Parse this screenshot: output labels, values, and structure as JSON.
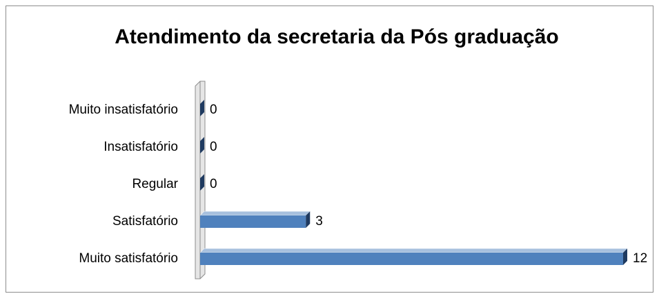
{
  "chart_data": {
    "type": "bar",
    "orientation": "horizontal",
    "title": "Atendimento da secretaria da Pós graduação",
    "categories": [
      "Muito insatisfatório",
      "Insatisfatório",
      "Regular",
      "Satisfatório",
      "Muito satisfatório"
    ],
    "values": [
      0,
      0,
      0,
      3,
      12
    ],
    "color": "#4f81bd",
    "xlim": [
      0,
      12
    ]
  }
}
